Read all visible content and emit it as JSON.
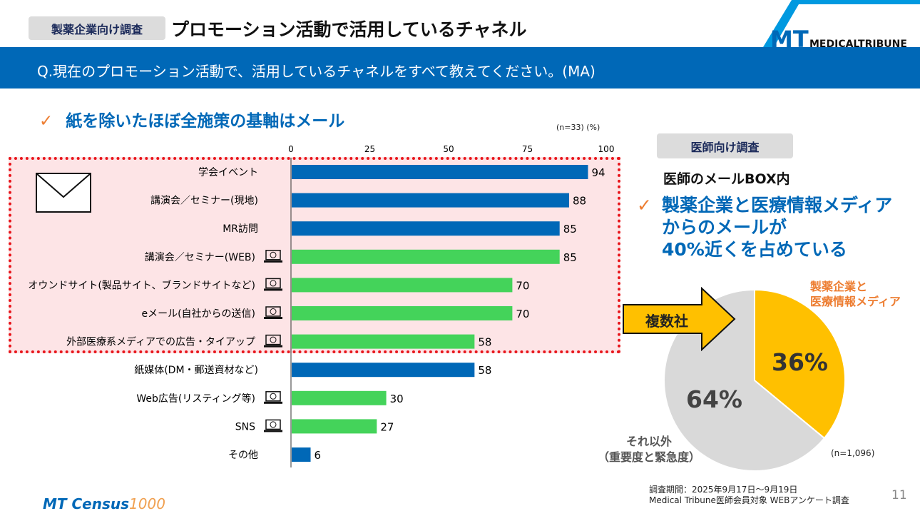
{
  "header": {
    "tag": "製薬企業向け調査",
    "title": "プロモーション活動で活用しているチャネル",
    "logo": "MEDICAL TRIBUNE"
  },
  "question": "Q.現在のプロモーション活動で、活用しているチャネルをすべて教えてください。(MA)",
  "headline": "紙を除いたほぼ全施策の基軸はメール",
  "check": "✓",
  "chart_data": [
    {
      "type": "bar",
      "orientation": "horizontal",
      "note": "(n=33) (%)",
      "xlim": [
        0,
        100
      ],
      "ticks": [
        0,
        25,
        50,
        75,
        100
      ],
      "categories": [
        "学会イベント",
        "講演会／セミナー(現地)",
        "MR訪問",
        "講演会／セミナー(WEB)",
        "オウンドサイト(製品サイト、ブランドサイトなど)",
        "eメール(自社からの送信)",
        "外部医療系メディアでの広告・タイアップ",
        "紙媒体(DM・郵送資材など)",
        "Web広告(リスティング等)",
        "SNS",
        "その他"
      ],
      "values": [
        94,
        88,
        85,
        85,
        70,
        70,
        58,
        58,
        30,
        27,
        6
      ],
      "digital": [
        false,
        false,
        false,
        true,
        true,
        true,
        true,
        false,
        true,
        true,
        false
      ],
      "colors": {
        "offline": "#0068b7",
        "digital": "#44d35a"
      }
    },
    {
      "type": "pie",
      "note": "(n=1,096)",
      "slices": [
        {
          "label": "製薬企業と医療情報メディア",
          "value": 36,
          "color": "#ffc000"
        },
        {
          "label": "それ以外(重要度と緊急度)",
          "value": 64,
          "color": "#d9d9d9"
        }
      ]
    }
  ],
  "right": {
    "tag": "医師向け調査",
    "subtitle": "医師のメールBOX内",
    "headline": [
      "製薬企業と医療情報メディア",
      "からのメールが",
      "40%近くを占めている"
    ],
    "arrow": "複数社",
    "slice1_label": [
      "製薬企業と",
      "医療情報メディア"
    ],
    "slice2_label": [
      "それ以外",
      "（重要度と緊急度）"
    ],
    "pct1": "36%",
    "pct2": "64%"
  },
  "footer": {
    "period": "調査期間：2025年9月17日～9月19日",
    "target": "Medical Tribune医師会員対象 WEBアンケート調査",
    "page": "11",
    "logo": "MT Census 1000"
  }
}
